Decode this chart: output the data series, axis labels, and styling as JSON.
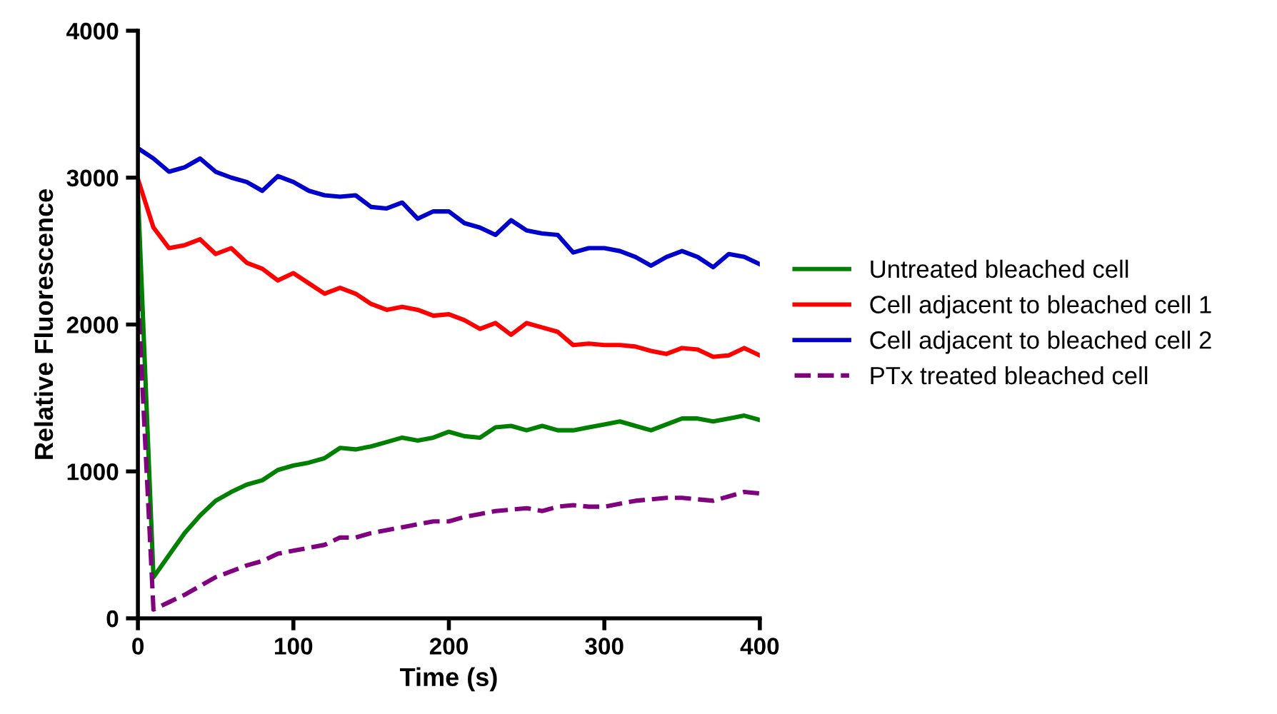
{
  "chart_data": {
    "type": "line",
    "xlabel": "Time (s)",
    "ylabel": "Relative Fluorescence",
    "x": [
      0,
      10,
      20,
      30,
      40,
      50,
      60,
      70,
      80,
      90,
      100,
      110,
      120,
      130,
      140,
      150,
      160,
      170,
      180,
      190,
      200,
      210,
      220,
      230,
      240,
      250,
      260,
      270,
      280,
      290,
      300,
      310,
      320,
      330,
      340,
      350,
      360,
      370,
      380,
      390,
      400
    ],
    "xlim": [
      0,
      400
    ],
    "xticks": [
      0,
      100,
      200,
      300,
      400
    ],
    "ylim": [
      0,
      4000
    ],
    "yticks": [
      0,
      1000,
      2000,
      3000,
      4000
    ],
    "grid": false,
    "legend": "right",
    "marker": "none",
    "series": [
      {
        "name": "Untreated bleached cell",
        "color": "#008000",
        "line_style": "solid",
        "values": [
          2900,
          280,
          430,
          580,
          700,
          800,
          860,
          910,
          940,
          1010,
          1040,
          1060,
          1090,
          1160,
          1150,
          1170,
          1200,
          1230,
          1210,
          1230,
          1270,
          1240,
          1230,
          1300,
          1310,
          1280,
          1310,
          1280,
          1280,
          1300,
          1320,
          1340,
          1310,
          1280,
          1320,
          1360,
          1360,
          1340,
          1360,
          1380,
          1350
        ]
      },
      {
        "name": "Cell adjacent to bleached cell 1",
        "color": "#ff0000",
        "line_style": "solid",
        "values": [
          2990,
          2660,
          2520,
          2540,
          2580,
          2480,
          2520,
          2420,
          2380,
          2300,
          2350,
          2280,
          2210,
          2250,
          2210,
          2140,
          2100,
          2120,
          2100,
          2060,
          2070,
          2030,
          1970,
          2010,
          1930,
          2010,
          1980,
          1950,
          1860,
          1870,
          1860,
          1860,
          1850,
          1820,
          1800,
          1840,
          1830,
          1780,
          1790,
          1840,
          1790
        ]
      },
      {
        "name": "Cell adjacent to bleached cell 2",
        "color": "#0000cc",
        "line_style": "solid",
        "values": [
          3200,
          3130,
          3040,
          3070,
          3130,
          3040,
          3000,
          2970,
          2910,
          3010,
          2970,
          2910,
          2880,
          2870,
          2880,
          2800,
          2790,
          2830,
          2720,
          2770,
          2770,
          2690,
          2660,
          2610,
          2710,
          2640,
          2620,
          2610,
          2490,
          2520,
          2520,
          2500,
          2460,
          2400,
          2460,
          2500,
          2460,
          2390,
          2480,
          2460,
          2410
        ]
      },
      {
        "name": "PTx treated bleached cell",
        "color": "#800080",
        "line_style": "dashed",
        "values": [
          2200,
          60,
          110,
          160,
          220,
          280,
          320,
          360,
          390,
          440,
          460,
          480,
          500,
          550,
          550,
          580,
          600,
          620,
          640,
          660,
          660,
          690,
          710,
          730,
          740,
          750,
          730,
          760,
          770,
          760,
          760,
          780,
          800,
          810,
          820,
          820,
          810,
          800,
          830,
          860,
          850
        ]
      }
    ]
  }
}
